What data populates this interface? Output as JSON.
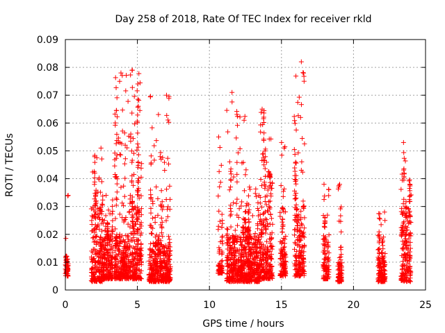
{
  "chart_data": {
    "type": "scatter",
    "title": "Day 258 of 2018, Rate Of TEC Index for receiver rkld",
    "xlabel": "GPS time / hours",
    "ylabel": "ROTI / TECUs",
    "xlim": [
      0,
      25
    ],
    "ylim": [
      0,
      0.09
    ],
    "x_ticks": [
      0,
      5,
      10,
      15,
      20,
      25
    ],
    "y_ticks": [
      0,
      0.01,
      0.02,
      0.03,
      0.04,
      0.05,
      0.06,
      0.07,
      0.08,
      0.09
    ],
    "x_tick_labels": [
      "0",
      "5",
      "10",
      "15",
      "20",
      "25"
    ],
    "y_tick_labels": [
      "0",
      "0.01",
      "0.02",
      "0.03",
      "0.04",
      "0.05",
      "0.06",
      "0.07",
      "0.08",
      "0.09"
    ],
    "grid": true,
    "legend": "none",
    "marker": "plus",
    "marker_color": "#ff0000",
    "clusters": [
      {
        "x_range": [
          0.0,
          0.2
        ],
        "y_bulk": [
          0.005,
          0.012
        ],
        "y_max": 0.034
      },
      {
        "x_range": [
          1.8,
          2.6
        ],
        "y_bulk": [
          0.003,
          0.03
        ],
        "y_max": 0.051
      },
      {
        "x_range": [
          2.6,
          3.3
        ],
        "y_bulk": [
          0.004,
          0.02
        ],
        "y_max": 0.034
      },
      {
        "x_range": [
          3.4,
          4.4
        ],
        "y_bulk": [
          0.004,
          0.02
        ],
        "y_max": 0.078
      },
      {
        "x_range": [
          4.4,
          5.3
        ],
        "y_bulk": [
          0.004,
          0.03
        ],
        "y_max": 0.079
      },
      {
        "x_range": [
          5.8,
          7.3
        ],
        "y_bulk": [
          0.003,
          0.016
        ],
        "y_max": 0.07
      },
      {
        "x_range": [
          10.6,
          10.9
        ],
        "y_bulk": [
          0.006,
          0.009
        ],
        "y_max": 0.055
      },
      {
        "x_range": [
          11.2,
          12.6
        ],
        "y_bulk": [
          0.003,
          0.02
        ],
        "y_max": 0.071
      },
      {
        "x_range": [
          12.6,
          13.5
        ],
        "y_bulk": [
          0.003,
          0.02
        ],
        "y_max": 0.037
      },
      {
        "x_range": [
          13.5,
          14.4
        ],
        "y_bulk": [
          0.004,
          0.04
        ],
        "y_max": 0.065
      },
      {
        "x_range": [
          14.9,
          15.3
        ],
        "y_bulk": [
          0.005,
          0.02
        ],
        "y_max": 0.053
      },
      {
        "x_range": [
          15.9,
          16.6
        ],
        "y_bulk": [
          0.005,
          0.03
        ],
        "y_max": 0.082
      },
      {
        "x_range": [
          17.9,
          18.3
        ],
        "y_bulk": [
          0.004,
          0.02
        ],
        "y_max": 0.038
      },
      {
        "x_range": [
          18.9,
          19.2
        ],
        "y_bulk": [
          0.003,
          0.01
        ],
        "y_max": 0.038
      },
      {
        "x_range": [
          21.7,
          22.2
        ],
        "y_bulk": [
          0.003,
          0.012
        ],
        "y_max": 0.028
      },
      {
        "x_range": [
          23.3,
          24.0
        ],
        "y_bulk": [
          0.003,
          0.03
        ],
        "y_max": 0.053
      }
    ]
  }
}
